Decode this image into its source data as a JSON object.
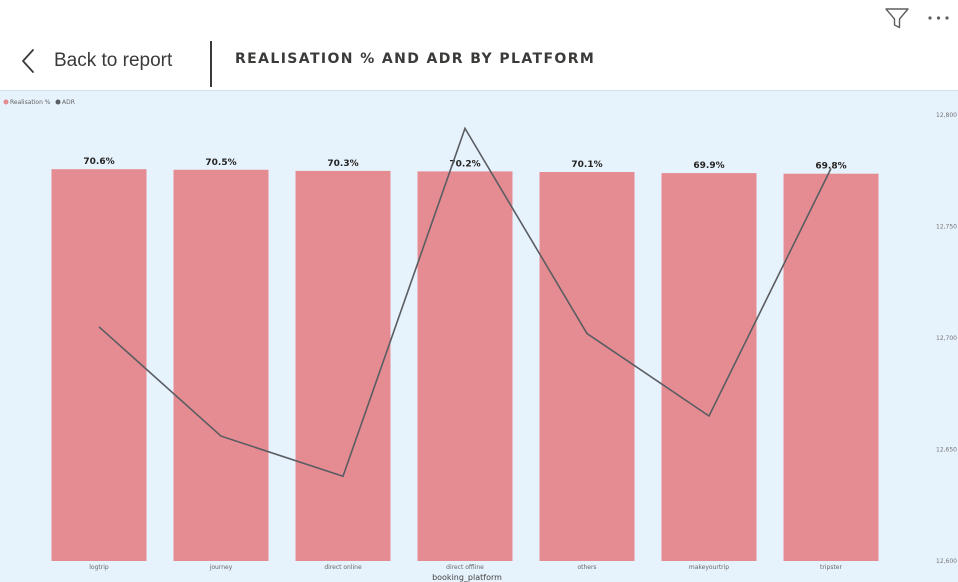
{
  "header": {
    "back_label": "Back to report",
    "title": "REALISATION % AND ADR BY PLATFORM",
    "icons": [
      "filter-icon",
      "more-options-icon",
      "chevron-left-icon"
    ]
  },
  "chart_data": {
    "type": "bar",
    "title": "REALISATION % AND ADR BY PLATFORM",
    "xlabel": "booking_platform",
    "ylabel": "",
    "categories": [
      "logtrip",
      "journey",
      "direct online",
      "direct offline",
      "others",
      "makeyourtrip",
      "tripster"
    ],
    "series": [
      {
        "name": "Realisation %",
        "kind": "bar",
        "values": [
          70.6,
          70.5,
          70.3,
          70.2,
          70.1,
          69.9,
          69.8
        ],
        "labels": [
          "70.6%",
          "70.5%",
          "70.3%",
          "70.2%",
          "70.1%",
          "69.9%",
          "69.8%"
        ],
        "color": "#e58c93"
      },
      {
        "name": "ADR",
        "kind": "line",
        "axis": "right",
        "values": [
          12705,
          12656,
          12638,
          12794,
          12702,
          12665,
          12776
        ],
        "color": "#5a5d61"
      }
    ],
    "ylim": [
      0,
      71
    ],
    "y2lim": [
      12600,
      12800
    ],
    "y2_ticks": [
      12600,
      12650,
      12700,
      12750,
      12800
    ],
    "y2_tick_labels": [
      "12,600",
      "12,650",
      "12,700",
      "12,750",
      "12,800"
    ],
    "legend": {
      "items": [
        "Realisation %",
        "ADR"
      ],
      "position": "top-left"
    },
    "grid": false
  }
}
